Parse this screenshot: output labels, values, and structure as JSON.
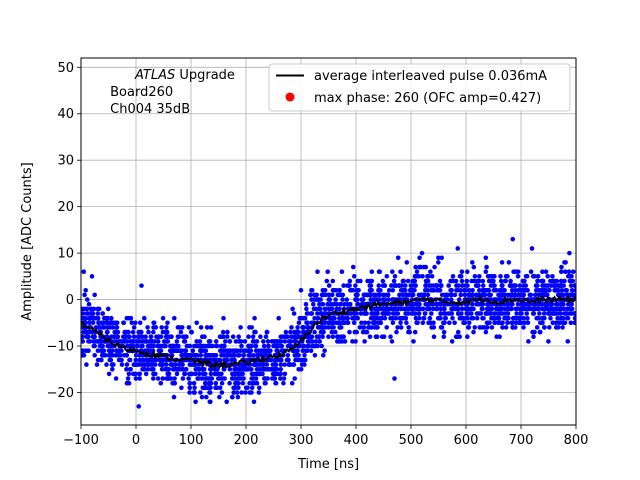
{
  "chart_data": {
    "type": "scatter",
    "title": "",
    "xlabel": "Time [ns]",
    "ylabel": "Amplitude [ADC Counts]",
    "xlim": [
      -100,
      800
    ],
    "ylim": [
      -27,
      52
    ],
    "x_ticks": [
      -100,
      0,
      100,
      200,
      300,
      400,
      500,
      600,
      700,
      800
    ],
    "y_ticks": [
      -20,
      -10,
      0,
      10,
      20,
      30,
      40,
      50
    ],
    "grid": true,
    "annotation": {
      "line1_italic": "ATLAS",
      "line1_rest": " Upgrade",
      "line2": " Board260",
      "line3": " Ch004 35dB"
    },
    "legend": {
      "placement": "top-right",
      "entries": [
        {
          "label": "average interleaved pulse 0.036mA",
          "marker": "line",
          "color": "#000000"
        },
        {
          "label": "max phase: 260 (OFC amp=0.427)",
          "marker": "dot",
          "color": "#ff0000"
        }
      ]
    },
    "series": [
      {
        "name": "samples",
        "kind": "scatter",
        "color": "#0000ff",
        "note": "dense band of blue sample points around the average pulse, spread about +/-6 ADC counts",
        "outliers": [
          {
            "x": -95,
            "y": 6
          },
          {
            "x": -80,
            "y": 5
          },
          {
            "x": 10,
            "y": 3
          },
          {
            "x": 5,
            "y": -23
          },
          {
            "x": 120,
            "y": -21
          },
          {
            "x": 175,
            "y": -21
          },
          {
            "x": 300,
            "y": 2
          },
          {
            "x": 330,
            "y": 6
          },
          {
            "x": 395,
            "y": 7
          },
          {
            "x": 470,
            "y": -17
          },
          {
            "x": 520,
            "y": 10
          },
          {
            "x": 585,
            "y": 11
          },
          {
            "x": 685,
            "y": 13
          },
          {
            "x": 720,
            "y": 11
          },
          {
            "x": 788,
            "y": 10
          },
          {
            "x": 785,
            "y": -9
          }
        ]
      },
      {
        "name": "average interleaved pulse 0.036mA",
        "kind": "line",
        "color": "#000000",
        "x": [
          -100,
          -80,
          -60,
          -40,
          -20,
          0,
          20,
          40,
          60,
          80,
          100,
          120,
          140,
          160,
          180,
          200,
          220,
          240,
          260,
          280,
          300,
          320,
          340,
          360,
          380,
          400,
          420,
          440,
          460,
          480,
          500,
          520,
          540,
          560,
          580,
          600,
          620,
          640,
          660,
          680,
          700,
          720,
          740,
          760,
          780,
          800
        ],
        "y": [
          -5,
          -6.5,
          -8,
          -9.5,
          -10.5,
          -11,
          -11.5,
          -12,
          -12.5,
          -13,
          -13,
          -13.5,
          -14,
          -14,
          -14,
          -13.5,
          -13,
          -12.5,
          -12,
          -11,
          -9,
          -6,
          -4,
          -3,
          -2.5,
          -2,
          -1.5,
          -1,
          -1,
          -0.5,
          -0.5,
          0,
          0,
          -0.5,
          -0.5,
          -0.5,
          0,
          0,
          -0.5,
          0,
          0,
          -0.5,
          0,
          0,
          0,
          0
        ]
      }
    ]
  }
}
